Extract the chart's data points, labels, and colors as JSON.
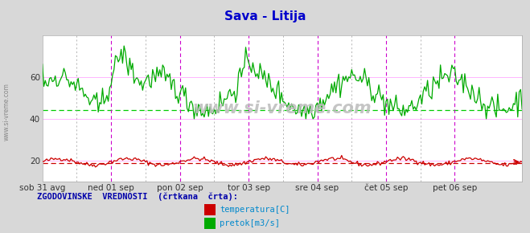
{
  "title": "Sava - Litija",
  "title_color": "#0000cc",
  "background_color": "#d8d8d8",
  "plot_bg_color": "#ffffff",
  "grid_color": "#ffaaff",
  "ylim": [
    10,
    80
  ],
  "yticks": [
    20,
    40,
    60
  ],
  "x_labels": [
    "sob 31 avg",
    "ned 01 sep",
    "pon 02 sep",
    "tor 03 sep",
    "sre 04 sep",
    "čet 05 sep",
    "pet 06 sep"
  ],
  "x_day_positions": [
    0,
    48,
    96,
    144,
    192,
    240,
    288
  ],
  "n_points": 336,
  "temp_color": "#cc0000",
  "flow_color": "#00aa00",
  "hist_flow_color": "#00cc00",
  "hist_temp_color": "#cc0000",
  "watermark": "www.si-vreme.com",
  "legend_label": "ZGODOVINSKE  VREDNOSTI  (črtkana  črta):",
  "legend_temp": "temperatura[C]",
  "legend_flow": "pretok[m3/s]",
  "vertical_line_color_main": "#cc00cc",
  "vertical_line_color_sub": "#999999",
  "hist_flow_level": 44.0,
  "hist_temp_level": 19.0,
  "seed": 42
}
